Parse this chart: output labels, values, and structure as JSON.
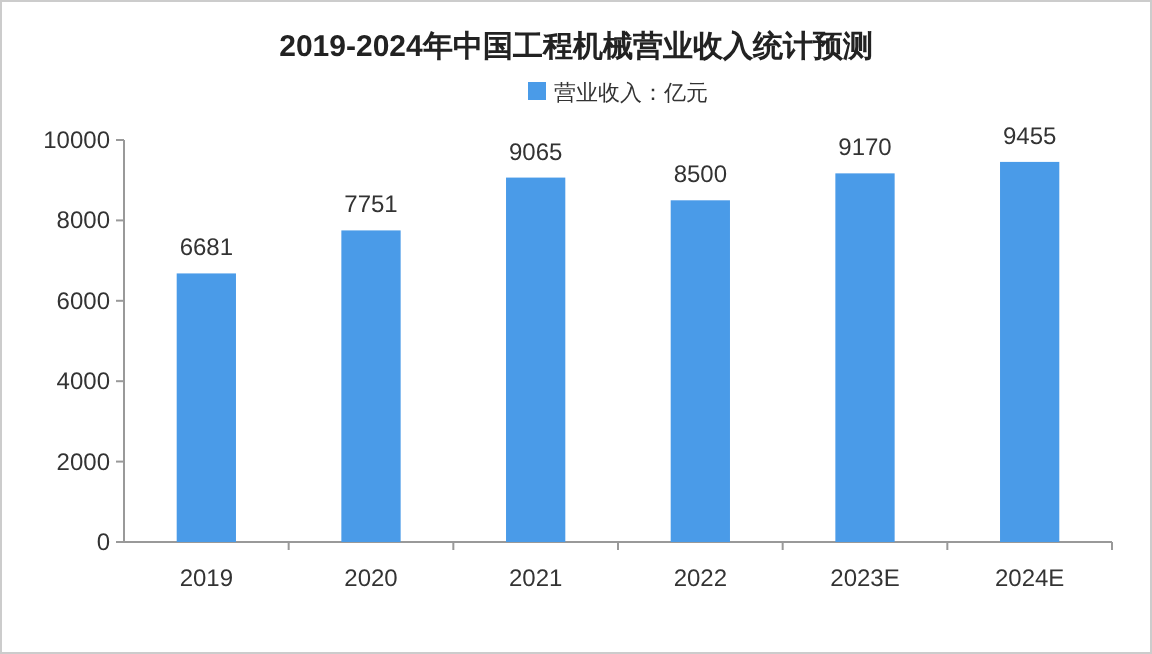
{
  "chart_data": {
    "type": "bar",
    "title": "2019-2024年中国工程机械营业收入统计预测",
    "categories": [
      "2019",
      "2020",
      "2021",
      "2022",
      "2023E",
      "2024E"
    ],
    "series": [
      {
        "name": "营业收入：亿元",
        "color": "#4a9be8",
        "values": [
          6681,
          7751,
          9065,
          8500,
          9170,
          9455
        ]
      }
    ],
    "ylim": [
      0,
      10000
    ],
    "yticks": [
      0,
      2000,
      4000,
      6000,
      8000,
      10000
    ],
    "data_labels": true,
    "legend": "top"
  }
}
